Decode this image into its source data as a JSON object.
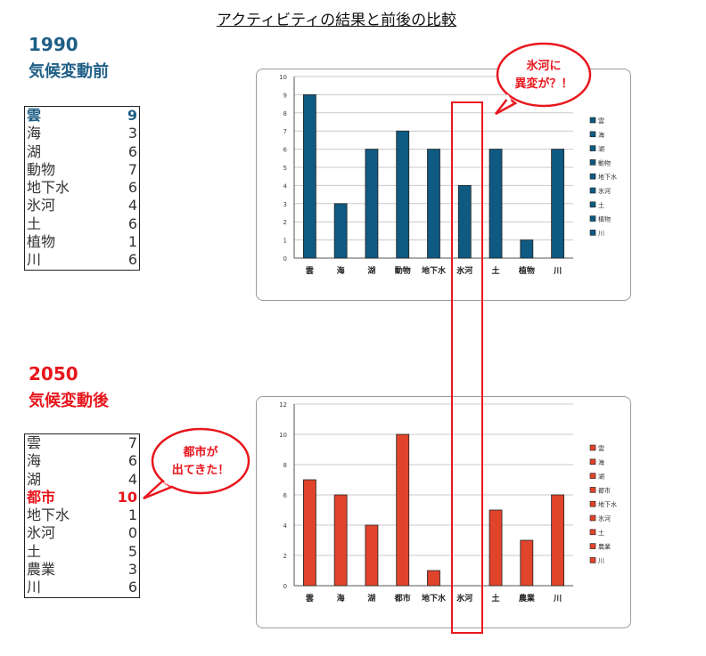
{
  "page_title": "アクティビティの結果と前後の比較",
  "before": {
    "year": "1990",
    "subtitle": "気候変動前",
    "rows": [
      {
        "label": "雲",
        "value": "9",
        "highlight": true
      },
      {
        "label": "海",
        "value": "3"
      },
      {
        "label": "湖",
        "value": "6"
      },
      {
        "label": "動物",
        "value": "7"
      },
      {
        "label": "地下水",
        "value": "6"
      },
      {
        "label": "氷河",
        "value": "4"
      },
      {
        "label": "土",
        "value": "6"
      },
      {
        "label": "植物",
        "value": "1"
      },
      {
        "label": "川",
        "value": "6"
      }
    ]
  },
  "after": {
    "year": "2050",
    "subtitle": "気候変動後",
    "rows": [
      {
        "label": "雲",
        "value": "7"
      },
      {
        "label": "海",
        "value": "6"
      },
      {
        "label": "湖",
        "value": "4"
      },
      {
        "label": "都市",
        "value": "10",
        "highlight": true
      },
      {
        "label": "地下水",
        "value": "1"
      },
      {
        "label": "氷河",
        "value": "0"
      },
      {
        "label": "土",
        "value": "5"
      },
      {
        "label": "農業",
        "value": "3"
      },
      {
        "label": "川",
        "value": "6"
      }
    ]
  },
  "callouts": {
    "glacier_line1": "氷河に",
    "glacier_line2": "異変が？！",
    "city_line1": "都市が",
    "city_line2": "出てきた！"
  },
  "colors": {
    "blue": "#0f5a82",
    "red": "#e0442b",
    "accent_red": "#e8161d"
  },
  "chart_data": [
    {
      "type": "bar",
      "categories": [
        "雲",
        "海",
        "湖",
        "動物",
        "地下水",
        "氷河",
        "土",
        "植物",
        "川"
      ],
      "values": [
        9,
        3,
        6,
        7,
        6,
        4,
        6,
        1,
        6
      ],
      "ylim": [
        0,
        10
      ],
      "yticks": [
        0,
        1,
        2,
        3,
        4,
        5,
        6,
        7,
        8,
        9,
        10
      ],
      "legend": [
        "雲",
        "海",
        "湖",
        "動物",
        "地下水",
        "氷河",
        "土",
        "植物",
        "川"
      ],
      "legend_position": "right",
      "grid": true,
      "color": "#0f5a82"
    },
    {
      "type": "bar",
      "categories": [
        "雲",
        "海",
        "湖",
        "都市",
        "地下水",
        "氷河",
        "土",
        "農業",
        "川"
      ],
      "values": [
        7,
        6,
        4,
        10,
        1,
        0,
        5,
        3,
        6
      ],
      "ylim": [
        0,
        12
      ],
      "yticks": [
        0,
        2,
        4,
        6,
        8,
        10,
        12
      ],
      "legend": [
        "雲",
        "海",
        "湖",
        "都市",
        "地下水",
        "氷河",
        "土",
        "農業",
        "川"
      ],
      "legend_position": "right",
      "grid": true,
      "color": "#e0442b"
    }
  ]
}
